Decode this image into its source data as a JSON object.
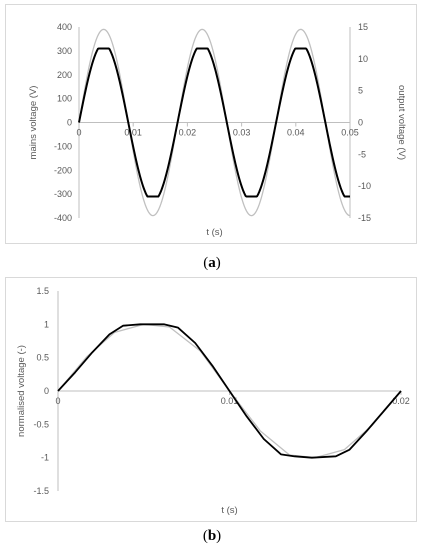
{
  "captions": {
    "a_open": "(",
    "a_letter": "a",
    "a_close": ")",
    "b_open": "(",
    "b_letter": "b",
    "b_close": ")"
  },
  "chart_data": [
    {
      "type": "line",
      "xlabel": "t (s)",
      "ylabel": "mains voltage (V)",
      "y2label": "output voltage (V)",
      "xlim": [
        0,
        0.05
      ],
      "ylim": [
        -400,
        400
      ],
      "y2lim": [
        -15,
        15
      ],
      "xticks": [
        "0",
        "0.01",
        "0.02",
        "0.03",
        "0.04",
        "0.05"
      ],
      "yticks": [
        "400",
        "300",
        "200",
        "100",
        "0",
        "-100",
        "-200",
        "-300",
        "-400"
      ],
      "y2ticks": [
        "15",
        "10",
        "5",
        "0",
        "-5",
        "-10",
        "-15"
      ],
      "grid": false,
      "legend": "none",
      "series": [
        {
          "axis": "left",
          "color": "#c0c0c0",
          "amplitude": 390,
          "clip": 390,
          "frequency_hz": 55
        },
        {
          "axis": "left",
          "color": "#000000",
          "amplitude": 330,
          "clip": 310,
          "frequency_hz": 55
        }
      ]
    },
    {
      "type": "line",
      "xlabel": "t (s)",
      "ylabel": "normalised voltage (-)",
      "xlim": [
        0,
        0.02
      ],
      "ylim": [
        -1.5,
        1.5
      ],
      "xticks": [
        "0",
        "0.01",
        "0.02"
      ],
      "yticks": [
        "1.5",
        "1",
        "0.5",
        "0",
        "-0.5",
        "-1",
        "-1.5"
      ],
      "grid": false,
      "legend": "none",
      "series": [
        {
          "color": "#c0c0c0",
          "x": [
            0,
            0.0017,
            0.0033,
            0.005,
            0.0065,
            0.0083,
            0.01,
            0.0118,
            0.0135,
            0.015,
            0.0167,
            0.0183,
            0.02
          ],
          "y": [
            0,
            0.52,
            0.88,
            1.0,
            0.96,
            0.6,
            0.0,
            -0.6,
            -0.96,
            -1.0,
            -0.88,
            -0.52,
            0
          ]
        },
        {
          "color": "#000000",
          "x": [
            0,
            0.001,
            0.002,
            0.003,
            0.0038,
            0.0048,
            0.0062,
            0.007,
            0.008,
            0.009,
            0.01,
            0.011,
            0.012,
            0.013,
            0.0138,
            0.0148,
            0.0162,
            0.017,
            0.018,
            0.019,
            0.02
          ],
          "y": [
            0,
            0.28,
            0.58,
            0.85,
            0.98,
            1.0,
            1.0,
            0.95,
            0.72,
            0.38,
            0.0,
            -0.38,
            -0.72,
            -0.95,
            -0.98,
            -1.0,
            -0.98,
            -0.88,
            -0.6,
            -0.3,
            0
          ]
        }
      ]
    }
  ]
}
